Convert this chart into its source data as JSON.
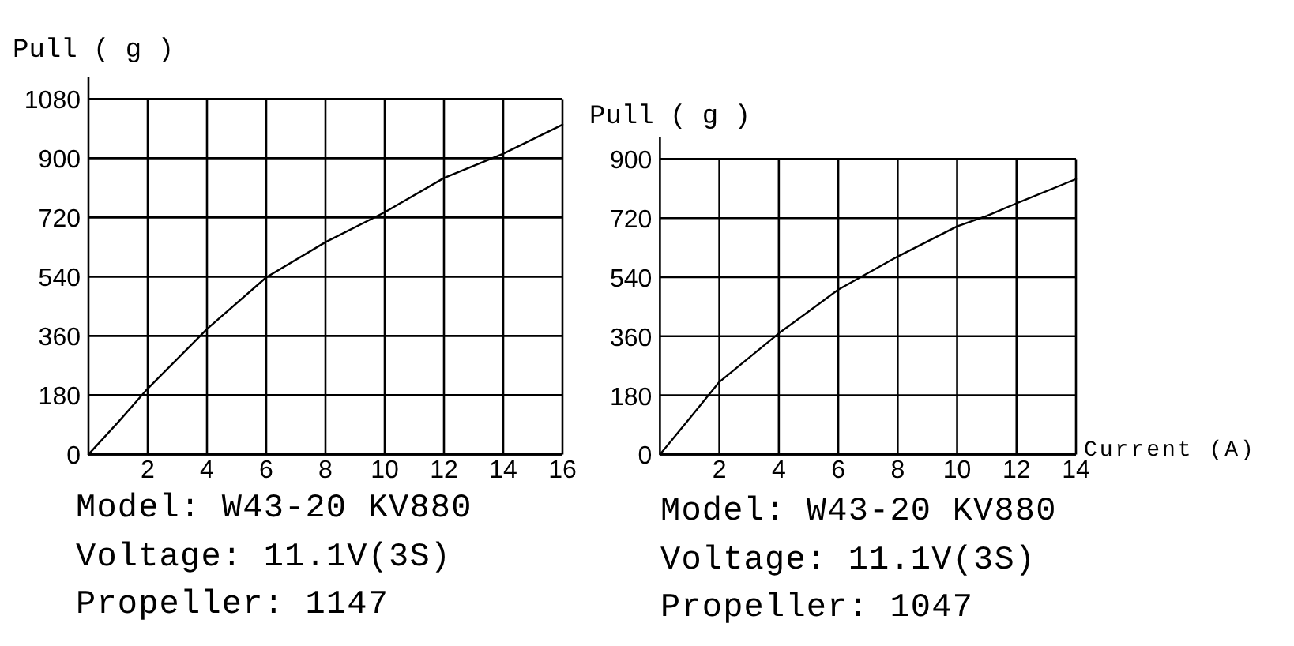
{
  "chart_data": [
    {
      "type": "line",
      "ylabel": "Pull ( g )",
      "x": [
        0,
        1,
        2,
        4,
        6,
        8,
        10,
        12,
        14,
        16
      ],
      "values": [
        0,
        98,
        200,
        381,
        538,
        645,
        736,
        840,
        914,
        1002
      ],
      "color": "#000000",
      "xlim": [
        0,
        16
      ],
      "xticks": [
        2,
        4,
        6,
        8,
        10,
        12,
        14,
        16
      ],
      "ylim": [
        0,
        1080
      ],
      "yticks": [
        0,
        180,
        360,
        540,
        720,
        900,
        1080
      ],
      "grid": true,
      "annotations": [
        "Model: W43-20 KV880",
        "Voltage: 11.1V(3S)",
        "Propeller: 1147"
      ]
    },
    {
      "type": "line",
      "ylabel": "Pull ( g )",
      "xlabel": "Current (A)",
      "x": [
        0,
        1,
        2,
        4,
        6,
        8,
        10,
        11,
        12,
        14
      ],
      "values": [
        0,
        110,
        221,
        369,
        502,
        603,
        695,
        727,
        765,
        839
      ],
      "color": "#000000",
      "xlim": [
        0,
        14
      ],
      "xticks": [
        2,
        4,
        6,
        8,
        10,
        12,
        14
      ],
      "ylim": [
        0,
        900
      ],
      "yticks": [
        0,
        180,
        360,
        540,
        720,
        900
      ],
      "grid": true,
      "annotations": [
        "Model: W43-20 KV880",
        "Voltage: 11.1V(3S)",
        "Propeller: 1047"
      ]
    }
  ]
}
